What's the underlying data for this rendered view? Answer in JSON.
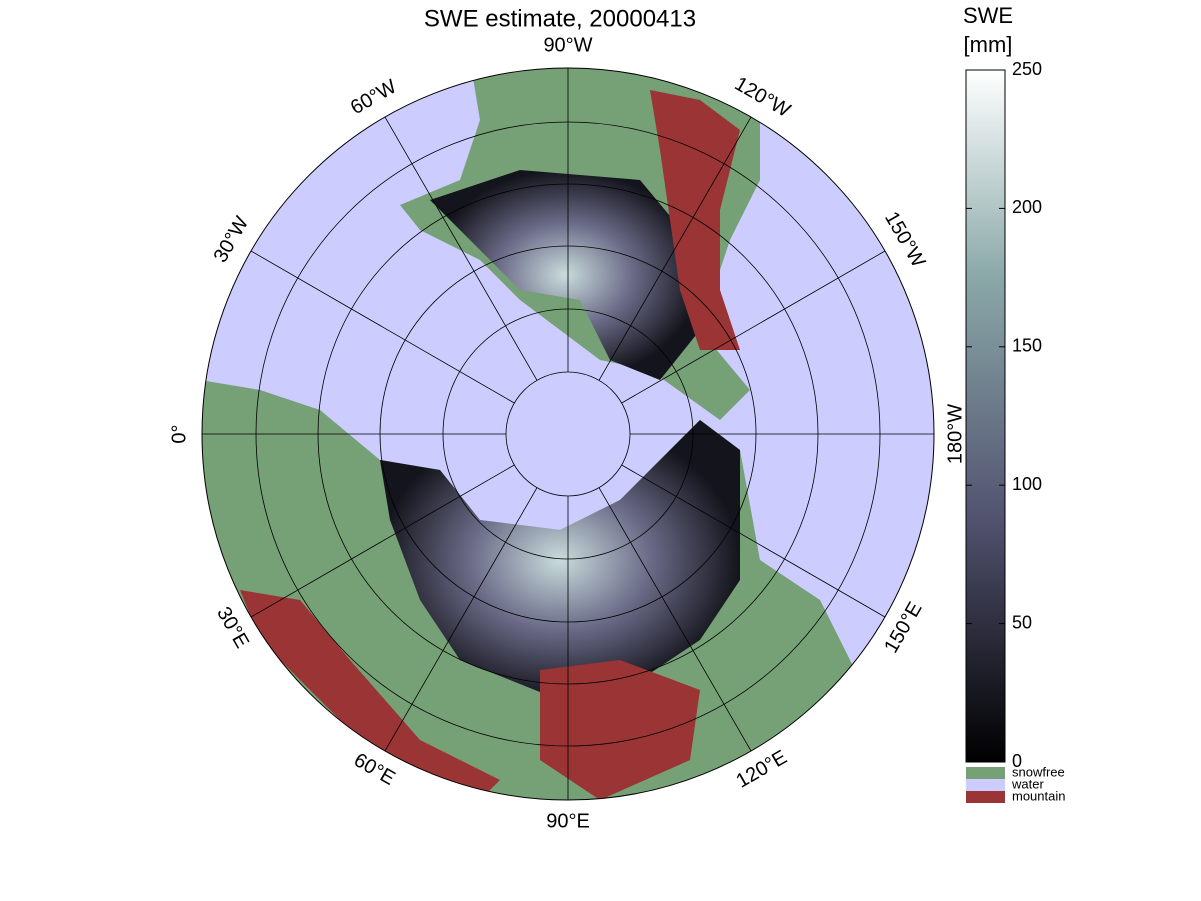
{
  "map": {
    "title": "SWE estimate, 20000413",
    "meridian_labels": [
      "0°",
      "30°W",
      "60°W",
      "90°W",
      "120°W",
      "150°W",
      "180°W",
      "150°E",
      "120°E",
      "90°E",
      "60°E",
      "30°E"
    ],
    "colorbar": {
      "title": [
        "SWE",
        "[mm]"
      ],
      "clim": [
        0,
        250
      ],
      "ticks": [
        0,
        50,
        100,
        150,
        200,
        250
      ]
    },
    "legend": [
      {
        "name": "snowfree",
        "color": "#76a076"
      },
      {
        "name": "water",
        "color": "#ccccff"
      },
      {
        "name": "mountain",
        "color": "#9b3434"
      }
    ]
  }
}
